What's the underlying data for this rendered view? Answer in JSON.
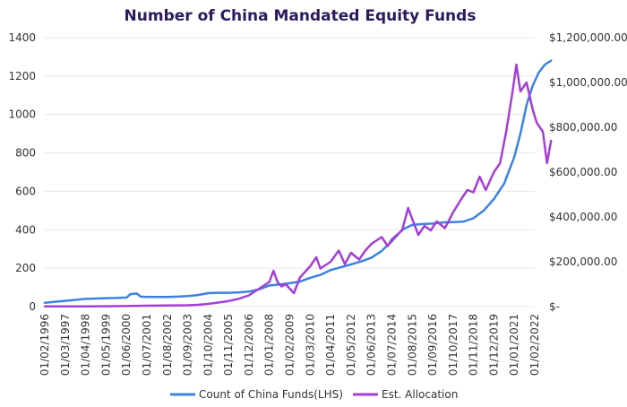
{
  "chart_data": {
    "type": "line",
    "title": "Number of China Mandated Equity Funds",
    "x_ticks": [
      "01/02/1996",
      "01/03/1997",
      "01/04/1998",
      "01/05/1999",
      "01/06/2000",
      "01/07/2001",
      "01/08/2002",
      "01/09/2003",
      "01/10/2004",
      "01/11/2005",
      "01/12/2006",
      "01/01/2008",
      "01/02/2009",
      "01/03/2010",
      "01/04/2011",
      "01/05/2012",
      "01/06/2013",
      "01/07/2014",
      "01/08/2015",
      "01/09/2016",
      "01/10/2017",
      "01/11/2018",
      "01/12/2019",
      "01/01/2021",
      "01/02/2022"
    ],
    "y_left": {
      "ticks": [
        "0",
        "200",
        "400",
        "600",
        "800",
        "1000",
        "1200",
        "1400"
      ],
      "min": 0,
      "max": 1400
    },
    "y_right": {
      "ticks": [
        "$-",
        "$200,000.00",
        "$400,000.00",
        "$600,000.00",
        "$800,000.00",
        "$1,000,000.00",
        "$1,200,000.00"
      ],
      "min": 0,
      "max": 1200000
    },
    "series": [
      {
        "name": "Count of China Funds(LHS)",
        "axis": "left",
        "color": "#3b82e0",
        "points": [
          [
            0,
            20
          ],
          [
            0.5,
            25
          ],
          [
            1,
            30
          ],
          [
            1.5,
            35
          ],
          [
            2,
            40
          ],
          [
            2.5,
            42
          ],
          [
            3,
            44
          ],
          [
            3.5,
            45
          ],
          [
            4,
            47
          ],
          [
            4.2,
            65
          ],
          [
            4.5,
            68
          ],
          [
            4.7,
            52
          ],
          [
            5,
            50
          ],
          [
            5.5,
            50
          ],
          [
            6,
            50
          ],
          [
            6.5,
            52
          ],
          [
            7,
            55
          ],
          [
            7.5,
            60
          ],
          [
            8,
            70
          ],
          [
            8.5,
            72
          ],
          [
            9,
            72
          ],
          [
            9.5,
            74
          ],
          [
            10,
            78
          ],
          [
            10.5,
            90
          ],
          [
            11,
            110
          ],
          [
            11.5,
            115
          ],
          [
            12,
            122
          ],
          [
            12.5,
            130
          ],
          [
            13,
            150
          ],
          [
            13.5,
            165
          ],
          [
            14,
            190
          ],
          [
            14.5,
            205
          ],
          [
            15,
            220
          ],
          [
            15.5,
            235
          ],
          [
            16,
            255
          ],
          [
            16.5,
            290
          ],
          [
            17,
            340
          ],
          [
            17.5,
            400
          ],
          [
            18,
            425
          ],
          [
            18.5,
            430
          ],
          [
            19,
            432
          ],
          [
            19.5,
            438
          ],
          [
            20,
            440
          ],
          [
            20.5,
            442
          ],
          [
            21,
            460
          ],
          [
            21.5,
            500
          ],
          [
            22,
            560
          ],
          [
            22.5,
            640
          ],
          [
            23,
            780
          ],
          [
            23.3,
            900
          ],
          [
            23.6,
            1050
          ],
          [
            23.9,
            1150
          ],
          [
            24.2,
            1220
          ],
          [
            24.5,
            1260
          ],
          [
            24.8,
            1280
          ]
        ]
      },
      {
        "name": "Est. Allocation",
        "axis": "right",
        "color": "#a43ed6",
        "points": [
          [
            0,
            1000
          ],
          [
            1,
            1000
          ],
          [
            2,
            1000
          ],
          [
            3,
            1500
          ],
          [
            4,
            2500
          ],
          [
            5,
            4000
          ],
          [
            6,
            5000
          ],
          [
            7,
            6000
          ],
          [
            7.5,
            8000
          ],
          [
            8,
            12000
          ],
          [
            8.5,
            18000
          ],
          [
            9,
            25000
          ],
          [
            9.5,
            35000
          ],
          [
            10,
            50000
          ],
          [
            10.5,
            80000
          ],
          [
            11,
            110000
          ],
          [
            11.2,
            160000
          ],
          [
            11.4,
            110000
          ],
          [
            11.6,
            90000
          ],
          [
            11.8,
            100000
          ],
          [
            12,
            80000
          ],
          [
            12.2,
            60000
          ],
          [
            12.5,
            130000
          ],
          [
            13,
            180000
          ],
          [
            13.3,
            220000
          ],
          [
            13.5,
            170000
          ],
          [
            14,
            200000
          ],
          [
            14.4,
            250000
          ],
          [
            14.7,
            190000
          ],
          [
            15,
            240000
          ],
          [
            15.4,
            210000
          ],
          [
            15.7,
            250000
          ],
          [
            16,
            280000
          ],
          [
            16.5,
            310000
          ],
          [
            16.8,
            270000
          ],
          [
            17,
            300000
          ],
          [
            17.5,
            340000
          ],
          [
            17.8,
            440000
          ],
          [
            18,
            390000
          ],
          [
            18.3,
            320000
          ],
          [
            18.6,
            360000
          ],
          [
            18.9,
            340000
          ],
          [
            19.2,
            380000
          ],
          [
            19.6,
            350000
          ],
          [
            20,
            420000
          ],
          [
            20.4,
            480000
          ],
          [
            20.7,
            520000
          ],
          [
            21,
            510000
          ],
          [
            21.3,
            580000
          ],
          [
            21.6,
            520000
          ],
          [
            22,
            600000
          ],
          [
            22.3,
            640000
          ],
          [
            22.6,
            780000
          ],
          [
            22.9,
            950000
          ],
          [
            23.1,
            1080000
          ],
          [
            23.3,
            960000
          ],
          [
            23.6,
            1000000
          ],
          [
            23.9,
            880000
          ],
          [
            24.1,
            820000
          ],
          [
            24.4,
            780000
          ],
          [
            24.6,
            640000
          ],
          [
            24.8,
            740000
          ]
        ]
      }
    ],
    "legend_position": "bottom",
    "grid": true
  }
}
